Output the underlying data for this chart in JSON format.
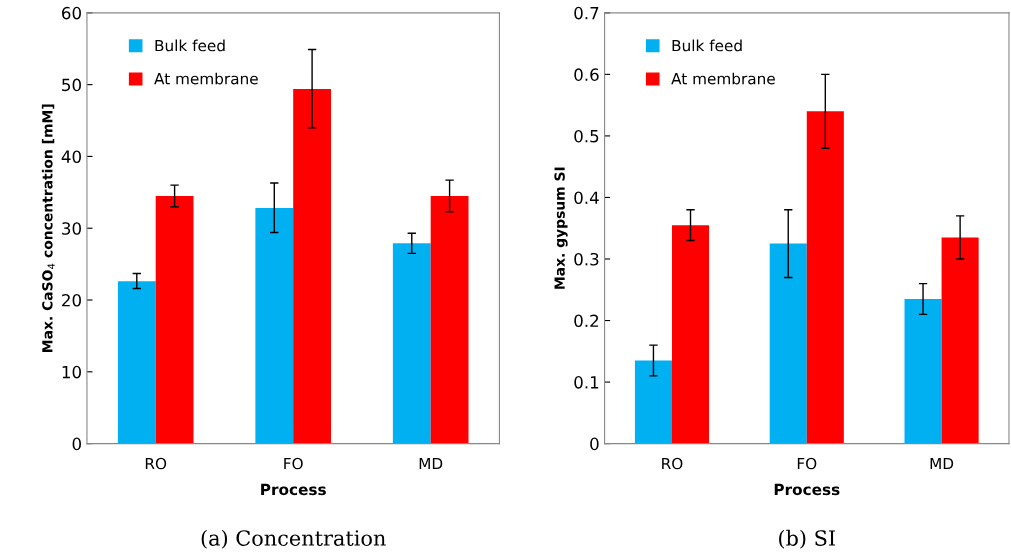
{
  "chart_data": [
    {
      "type": "bar",
      "categories": [
        "RO",
        "FO",
        "MD"
      ],
      "xlabel": "Process",
      "ylabel": "Max. CaSO$_{4}$ concentration [mM]",
      "ylim": [
        0,
        60
      ],
      "yticks": [
        0,
        10,
        20,
        30,
        40,
        50,
        60
      ],
      "legend": "top left",
      "grid": false,
      "series": [
        {
          "name": "Bulk feed",
          "color": "#00b0f0",
          "values": [
            22.6,
            32.8,
            27.9
          ],
          "errors": [
            [
              21.6,
              23.7
            ],
            [
              29.4,
              36.3
            ],
            [
              26.5,
              29.3
            ]
          ]
        },
        {
          "name": "At membrane",
          "color": "#ff0000",
          "values": [
            34.5,
            49.4,
            34.5
          ],
          "errors": [
            [
              33.0,
              36.0
            ],
            [
              44.0,
              54.9
            ],
            [
              32.3,
              36.7
            ]
          ]
        }
      ],
      "annotations": [
        "(a) Concentration"
      ]
    },
    {
      "type": "bar",
      "categories": [
        "RO",
        "FO",
        "MD"
      ],
      "xlabel": "Process",
      "ylabel": "Max. gypsum SI",
      "ylim": [
        0,
        0.7
      ],
      "yticks": [
        0,
        0.1,
        0.2,
        0.3,
        0.4,
        0.5,
        0.6,
        0.7
      ],
      "legend": "top left",
      "grid": false,
      "series": [
        {
          "name": "Bulk feed",
          "color": "#00b0f0",
          "values": [
            0.135,
            0.325,
            0.235
          ],
          "errors": [
            [
              0.11,
              0.16
            ],
            [
              0.27,
              0.38
            ],
            [
              0.21,
              0.26
            ]
          ]
        },
        {
          "name": "At membrane",
          "color": "#ff0000",
          "values": [
            0.355,
            0.54,
            0.335
          ],
          "errors": [
            [
              0.33,
              0.38
            ],
            [
              0.48,
              0.6
            ],
            [
              0.3,
              0.37
            ]
          ]
        }
      ],
      "annotations": [
        "(b) SI"
      ]
    }
  ]
}
